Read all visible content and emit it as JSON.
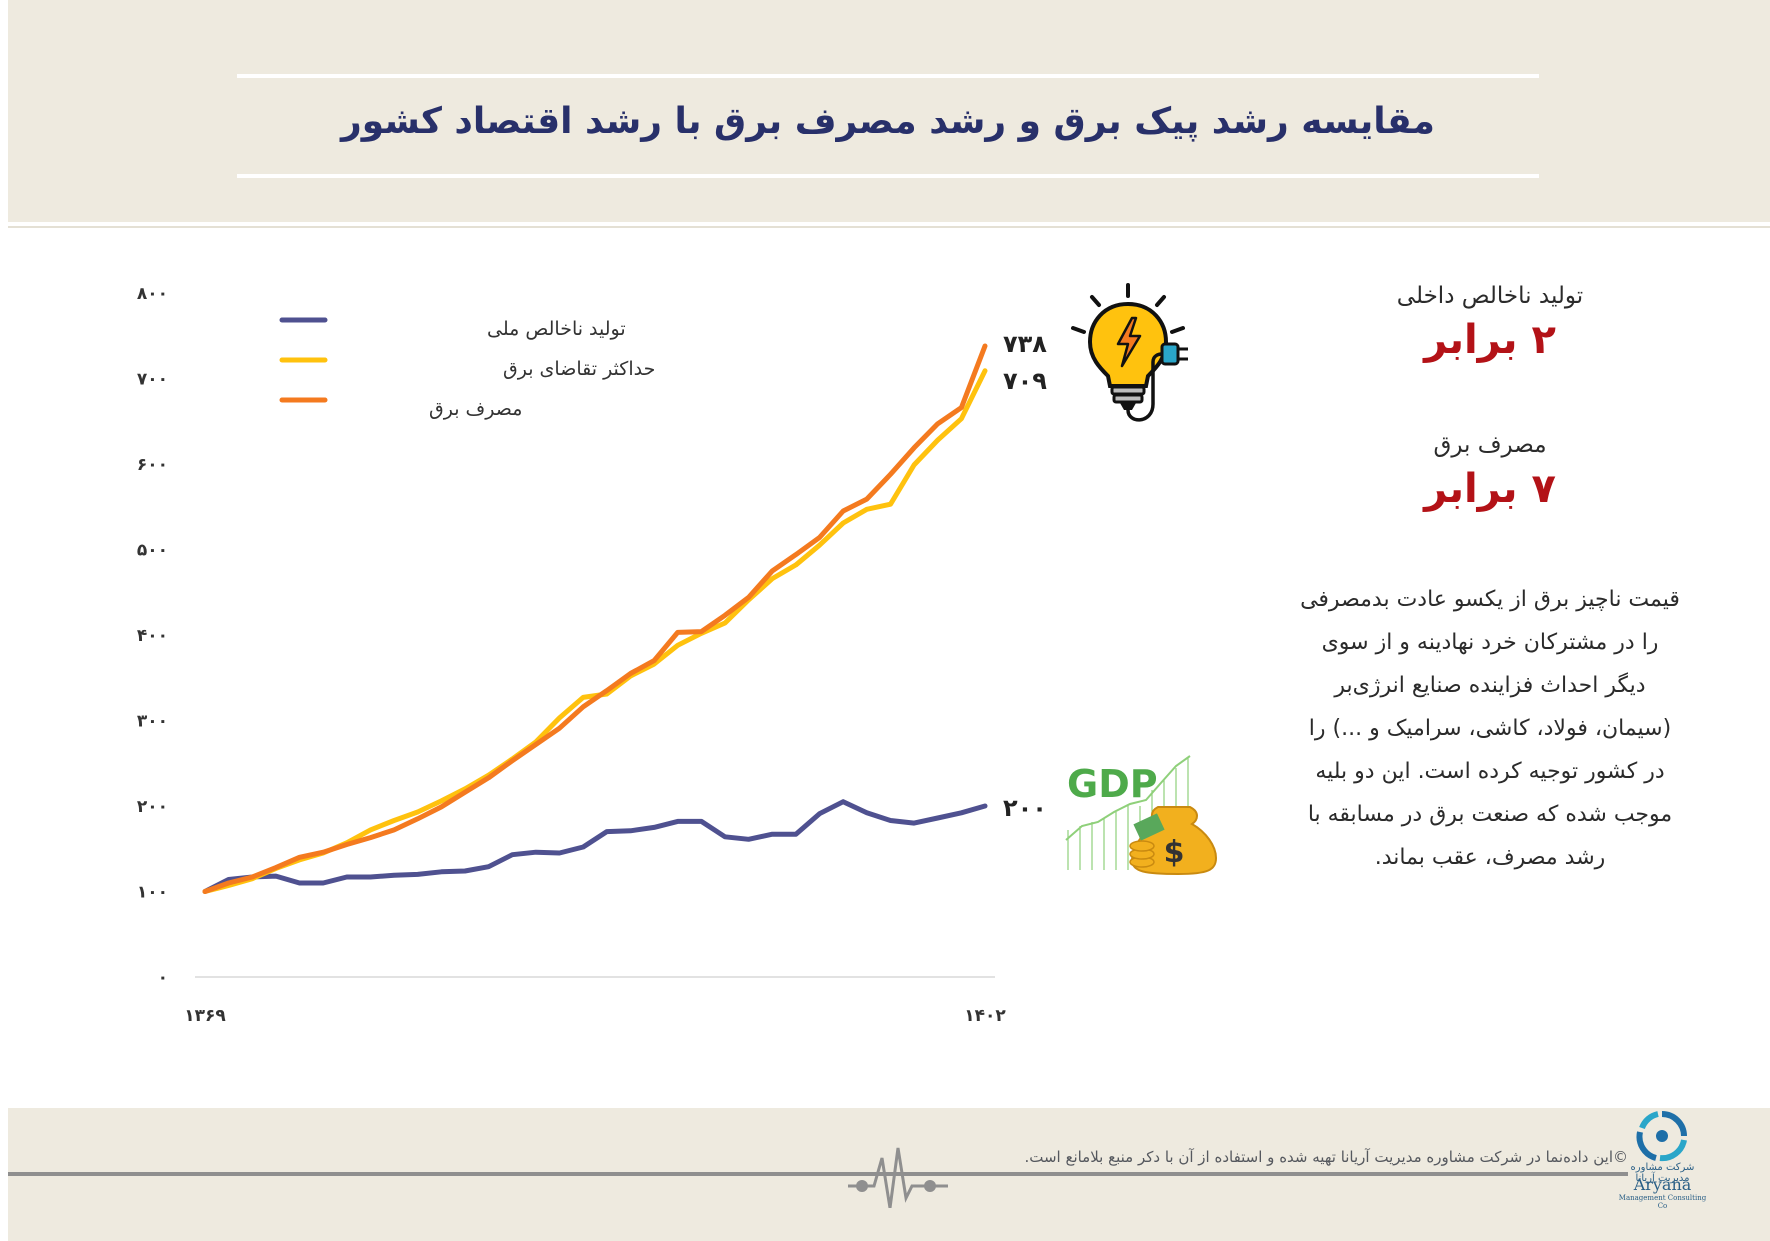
{
  "title": "مقایسه رشد پیک برق و رشد مصرف برق با رشد اقتصاد کشور",
  "stats": [
    {
      "label": "تولید ناخالص داخلی",
      "value": "۲ برابر"
    },
    {
      "label": "مصرف برق",
      "value": "۷ برابر"
    }
  ],
  "description": "قیمت ناچیز برق از یکسو عادت بدمصرفی را در مشترکان خرد نهادینه و از سوی دیگر احداث فزاینده صنایع انرژی‌بر (سیمان، فولاد، کاشی، سرامیک و ...) را در کشور توجیه کرده است. این دو بلیه موجب شده که صنعت برق در مسابقه با رشد مصرف، عقب بماند.",
  "footer": {
    "copyright": "©این داده‌نما در شرکت مشاوره مدیریت آریانا تهیه شده و استفاده از آن با دکر منبع بلامانع است.",
    "logo_fa": "شرکت مشاوره مدیریت آریانا",
    "logo_en": "Aryana",
    "logo_en_sub": "Management Consulting Co"
  },
  "icons": {
    "lightbulb": "lightbulb-plug-icon",
    "gdp": "gdp-money-bag-icon",
    "gdp_text": "GDP",
    "logo": "aryana-logo-icon"
  },
  "colors": {
    "gdp": "#4f5190",
    "peak": "#ffc20e",
    "consumption": "#f47a1f",
    "title": "#28306a",
    "accent": "#b31217"
  },
  "chart_data": {
    "type": "line",
    "x_start_label": "۱۳۶۹",
    "x_end_label": "۱۴۰۲",
    "x": [
      1369,
      1370,
      1371,
      1372,
      1373,
      1374,
      1375,
      1376,
      1377,
      1378,
      1379,
      1380,
      1381,
      1382,
      1383,
      1384,
      1385,
      1386,
      1387,
      1388,
      1389,
      1390,
      1391,
      1392,
      1393,
      1394,
      1395,
      1396,
      1397,
      1398,
      1399,
      1400,
      1401,
      1402
    ],
    "ylim": [
      0,
      800
    ],
    "yticks": [
      0,
      100,
      200,
      300,
      400,
      500,
      600,
      700,
      800
    ],
    "ytick_labels": [
      "۰",
      "۱۰۰",
      "۲۰۰",
      "۳۰۰",
      "۴۰۰",
      "۵۰۰",
      "۶۰۰",
      "۷۰۰",
      "۸۰۰"
    ],
    "grid": false,
    "legend": "top-left",
    "series": [
      {
        "name": "تولید ناخالص ملی",
        "color": "#4f5190",
        "end_label": "۲۰۰",
        "values": [
          100,
          114,
          117,
          118,
          110,
          110,
          117,
          117,
          119,
          120,
          123,
          124,
          129,
          143,
          146,
          145,
          152,
          170,
          171,
          175,
          182,
          182,
          164,
          161,
          167,
          167,
          191,
          205,
          192,
          183,
          180,
          186,
          192,
          200
        ]
      },
      {
        "name": "حداکثر تقاضای برق",
        "color": "#ffc20e",
        "end_label": "۷۰۹",
        "values": [
          100,
          107,
          115,
          127,
          137,
          145,
          157,
          172,
          183,
          193,
          206,
          220,
          236,
          255,
          275,
          303,
          327,
          331,
          352,
          366,
          388,
          402,
          414,
          441,
          466,
          482,
          505,
          531,
          547,
          553,
          599,
          628,
          653,
          709
        ]
      },
      {
        "name": "مصرف برق",
        "color": "#f47a1f",
        "end_label": "۷۳۸",
        "values": [
          100,
          110,
          117,
          128,
          140,
          146,
          155,
          163,
          172,
          185,
          199,
          216,
          233,
          253,
          272,
          291,
          316,
          335,
          355,
          370,
          403,
          404,
          423,
          444,
          475,
          494,
          514,
          545,
          559,
          588,
          619,
          647,
          666,
          738
        ]
      }
    ]
  }
}
